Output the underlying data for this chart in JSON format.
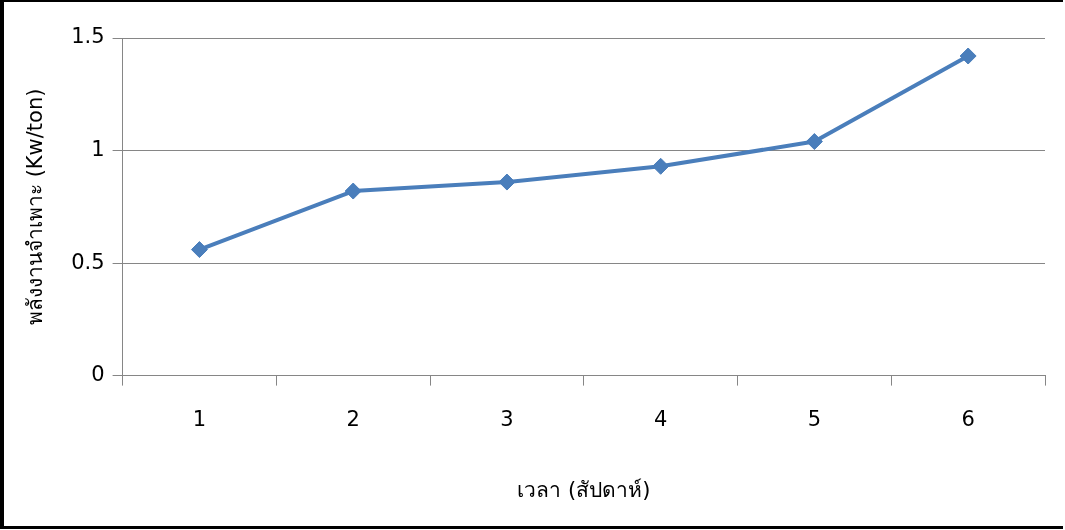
{
  "chart_data": {
    "type": "line",
    "xlabel": "เวลา (สัปดาห์)",
    "ylabel": "พลังงานจำเพาะ (Kw/ton)",
    "categories": [
      "1",
      "2",
      "3",
      "4",
      "5",
      "6"
    ],
    "series": [
      {
        "color": "#4a7ebb",
        "values": [
          0.56,
          0.82,
          0.86,
          0.93,
          1.04,
          1.42
        ]
      }
    ],
    "ylim": [
      0,
      1.5
    ],
    "yticks": [
      0,
      0.5,
      1,
      1.5
    ],
    "grid": "y",
    "legend": false,
    "marker": "diamond",
    "line_style": "solid"
  }
}
